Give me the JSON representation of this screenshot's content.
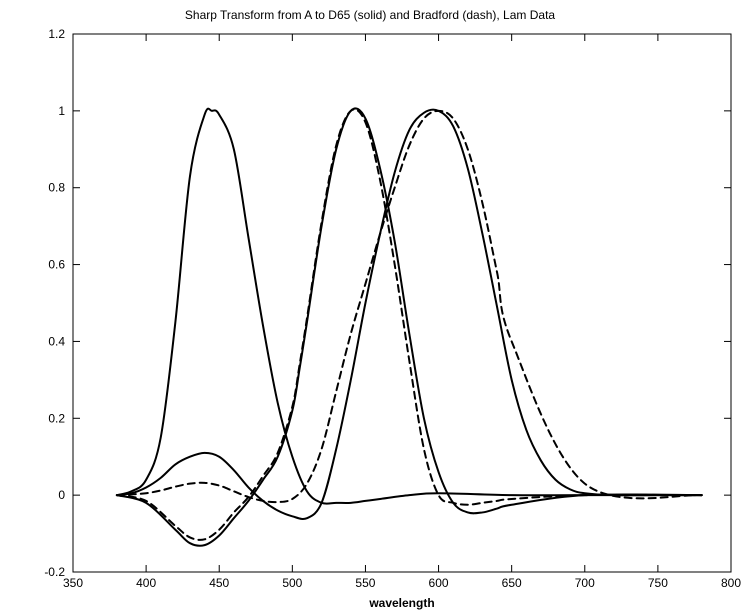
{
  "chart_data": {
    "type": "line",
    "title": "Sharp Transform from A to D65 (solid) and Bradford (dash), Lam Data",
    "xlabel": "wavelength",
    "ylabel": "",
    "xlim": [
      350,
      800
    ],
    "ylim": [
      -0.2,
      1.2
    ],
    "xticks": [
      350,
      400,
      450,
      500,
      550,
      600,
      650,
      700,
      750,
      800
    ],
    "yticks": [
      -0.2,
      0,
      0.2,
      0.4,
      0.6,
      0.8,
      1,
      1.2
    ],
    "ytick_labels": [
      "-0.2",
      "0",
      "0.2",
      "0.4",
      "0.6",
      "0.8",
      "1",
      "1.2"
    ],
    "grid": false,
    "legend": "none",
    "color": "#000000",
    "series": [
      {
        "style": "solid",
        "x": [
          380,
          390,
          400,
          410,
          420,
          430,
          440,
          445,
          450,
          460,
          470,
          480,
          490,
          500,
          510,
          520,
          530,
          540,
          550,
          560,
          580,
          600,
          650,
          700,
          780
        ],
        "y": [
          0.0,
          0.01,
          0.04,
          0.15,
          0.45,
          0.83,
          0.99,
          1.0,
          0.99,
          0.9,
          0.67,
          0.44,
          0.24,
          0.1,
          0.01,
          -0.02,
          -0.02,
          -0.02,
          -0.015,
          -0.01,
          0.0,
          0.005,
          0.0,
          0.0,
          0.0
        ]
      },
      {
        "style": "solid",
        "x": [
          380,
          400,
          420,
          430,
          440,
          450,
          460,
          470,
          480,
          490,
          500,
          505,
          510,
          520,
          530,
          540,
          550,
          560,
          570,
          580,
          590,
          600,
          610,
          620,
          630,
          640,
          650,
          700,
          780
        ],
        "y": [
          0.0,
          -0.02,
          -0.09,
          -0.125,
          -0.13,
          -0.105,
          -0.06,
          -0.015,
          0.04,
          0.1,
          0.22,
          0.33,
          0.45,
          0.7,
          0.9,
          1.0,
          0.98,
          0.85,
          0.66,
          0.42,
          0.2,
          0.06,
          -0.02,
          -0.045,
          -0.045,
          -0.035,
          -0.025,
          0.0,
          0.0
        ]
      },
      {
        "style": "solid",
        "x": [
          380,
          390,
          400,
          410,
          420,
          430,
          440,
          450,
          460,
          470,
          480,
          490,
          500,
          510,
          520,
          530,
          540,
          550,
          560,
          570,
          580,
          590,
          600,
          610,
          620,
          630,
          640,
          650,
          660,
          670,
          680,
          690,
          700,
          720,
          750,
          780
        ],
        "y": [
          0.0,
          0.005,
          0.02,
          0.045,
          0.08,
          0.1,
          0.11,
          0.1,
          0.065,
          0.02,
          -0.015,
          -0.04,
          -0.055,
          -0.06,
          -0.02,
          0.12,
          0.3,
          0.5,
          0.68,
          0.84,
          0.95,
          0.995,
          1.0,
          0.96,
          0.85,
          0.68,
          0.49,
          0.3,
          0.17,
          0.09,
          0.04,
          0.015,
          0.005,
          0.0,
          0.0,
          0.0
        ]
      },
      {
        "style": "dashed",
        "x": [
          380,
          390,
          400,
          410,
          420,
          430,
          440,
          450,
          460,
          470,
          480,
          490,
          500,
          510,
          520,
          530,
          540,
          550,
          560,
          570,
          580,
          590,
          600,
          610,
          620,
          630,
          640,
          650,
          700,
          780
        ],
        "y": [
          0.0,
          0.002,
          0.005,
          0.012,
          0.022,
          0.03,
          0.032,
          0.025,
          0.01,
          -0.005,
          -0.015,
          -0.018,
          -0.01,
          0.03,
          0.12,
          0.27,
          0.42,
          0.55,
          0.68,
          0.8,
          0.91,
          0.98,
          1.0,
          0.98,
          0.9,
          0.76,
          0.58,
          0.4,
          0.03,
          0.0
        ]
      },
      {
        "style": "dashed",
        "x": [
          380,
          400,
          420,
          430,
          440,
          450,
          460,
          470,
          480,
          490,
          500,
          505,
          510,
          520,
          530,
          540,
          550,
          560,
          570,
          580,
          590,
          600,
          610,
          620,
          630,
          640,
          650,
          700,
          780
        ],
        "y": [
          0.0,
          -0.015,
          -0.08,
          -0.11,
          -0.115,
          -0.09,
          -0.045,
          -0.005,
          0.05,
          0.11,
          0.23,
          0.34,
          0.46,
          0.71,
          0.91,
          1.0,
          0.97,
          0.82,
          0.6,
          0.35,
          0.12,
          0.0,
          -0.02,
          -0.025,
          -0.02,
          -0.015,
          -0.01,
          0.0,
          0.0
        ]
      }
    ]
  }
}
